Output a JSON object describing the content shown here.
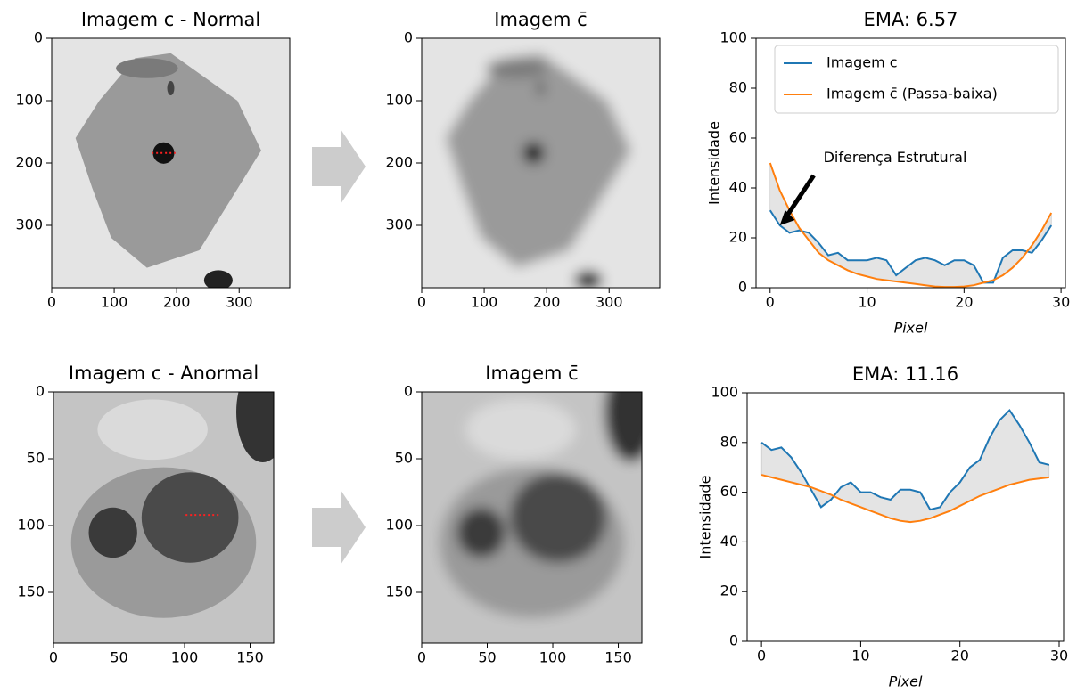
{
  "chart_data": [
    {
      "type": "image",
      "title": "Imagem c - Normal",
      "xlim": [
        0,
        381
      ],
      "ylim": [
        0,
        400
      ],
      "yinvert": true,
      "xticks": [
        0,
        100,
        200,
        300
      ],
      "yticks": [
        0,
        100,
        200,
        300
      ],
      "blur": false
    },
    {
      "type": "image",
      "title": "Imagem c̄",
      "xlim": [
        0,
        381
      ],
      "ylim": [
        0,
        400
      ],
      "yinvert": true,
      "xticks": [
        0,
        100,
        200,
        300
      ],
      "yticks": [
        0,
        100,
        200,
        300
      ],
      "blur": true
    },
    {
      "type": "line",
      "title": "EMA: 6.57",
      "xlabel": "Pixel",
      "ylabel": "Intensidade",
      "x": [
        0,
        1,
        2,
        3,
        4,
        5,
        6,
        7,
        8,
        9,
        10,
        11,
        12,
        13,
        14,
        15,
        16,
        17,
        18,
        19,
        20,
        21,
        22,
        23,
        24,
        25,
        26,
        27,
        28,
        29
      ],
      "series": [
        {
          "name": "Imagem c",
          "color": "#1f77b4",
          "values": [
            31,
            25,
            22,
            23,
            22,
            18,
            13,
            14,
            11,
            11,
            11,
            12,
            11,
            5,
            8,
            11,
            12,
            11,
            9,
            11,
            11,
            9,
            2,
            2,
            12,
            15,
            15,
            14,
            19,
            25
          ]
        },
        {
          "name": "Imagem c̄ (Passa-baixa)",
          "color": "#ff7f0e",
          "values": [
            50,
            39,
            31,
            24,
            19,
            14,
            11,
            9,
            7,
            5.5,
            4.5,
            3.5,
            3,
            2.5,
            2,
            1.5,
            1,
            0.5,
            0.3,
            0.3,
            0.5,
            1,
            2,
            3,
            5,
            8,
            12,
            17,
            23,
            30
          ]
        }
      ],
      "xlim": [
        -1.45,
        30.45
      ],
      "ylim": [
        0,
        100
      ],
      "xticks": [
        0,
        10,
        20,
        30
      ],
      "yticks": [
        0,
        20,
        40,
        60,
        80,
        100
      ],
      "legend": "upper right",
      "fill_between": true,
      "annotation": "Diferença Estrutural"
    },
    {
      "type": "image",
      "title": "Imagem c - Anormal",
      "xlim": [
        0,
        168
      ],
      "ylim": [
        0,
        188
      ],
      "yinvert": true,
      "xticks": [
        0,
        50,
        100,
        150
      ],
      "yticks": [
        0,
        50,
        100,
        150
      ],
      "blur": false
    },
    {
      "type": "image",
      "title": "Imagem c̄",
      "xlim": [
        0,
        168
      ],
      "ylim": [
        0,
        188
      ],
      "yinvert": true,
      "xticks": [
        0,
        50,
        100,
        150
      ],
      "yticks": [
        0,
        50,
        100,
        150
      ],
      "blur": true
    },
    {
      "type": "line",
      "title": "EMA: 11.16",
      "xlabel": "Pixel",
      "ylabel": "Intensidade",
      "x": [
        0,
        1,
        2,
        3,
        4,
        5,
        6,
        7,
        8,
        9,
        10,
        11,
        12,
        13,
        14,
        15,
        16,
        17,
        18,
        19,
        20,
        21,
        22,
        23,
        24,
        25,
        26,
        27,
        28,
        29
      ],
      "series": [
        {
          "color": "#1f77b4",
          "values": [
            80,
            77,
            78,
            74,
            68,
            61,
            54,
            57,
            62,
            64,
            60,
            60,
            58,
            57,
            61,
            61,
            60,
            53,
            54,
            60,
            64,
            70,
            73,
            82,
            89,
            93,
            87,
            80,
            72,
            71
          ]
        },
        {
          "color": "#ff7f0e",
          "values": [
            67,
            66,
            65,
            64,
            63,
            62,
            60.5,
            59,
            57,
            55.5,
            54,
            52.5,
            51,
            49.5,
            48.5,
            48,
            48.5,
            49.5,
            51,
            52.5,
            54.5,
            56.5,
            58.5,
            60,
            61.5,
            63,
            64,
            65,
            65.5,
            66
          ]
        }
      ],
      "xlim": [
        -1.45,
        30.45
      ],
      "ylim": [
        0,
        100
      ],
      "xticks": [
        0,
        10,
        20,
        30
      ],
      "yticks": [
        0,
        20,
        40,
        60,
        80,
        100
      ],
      "fill_between": true
    }
  ]
}
